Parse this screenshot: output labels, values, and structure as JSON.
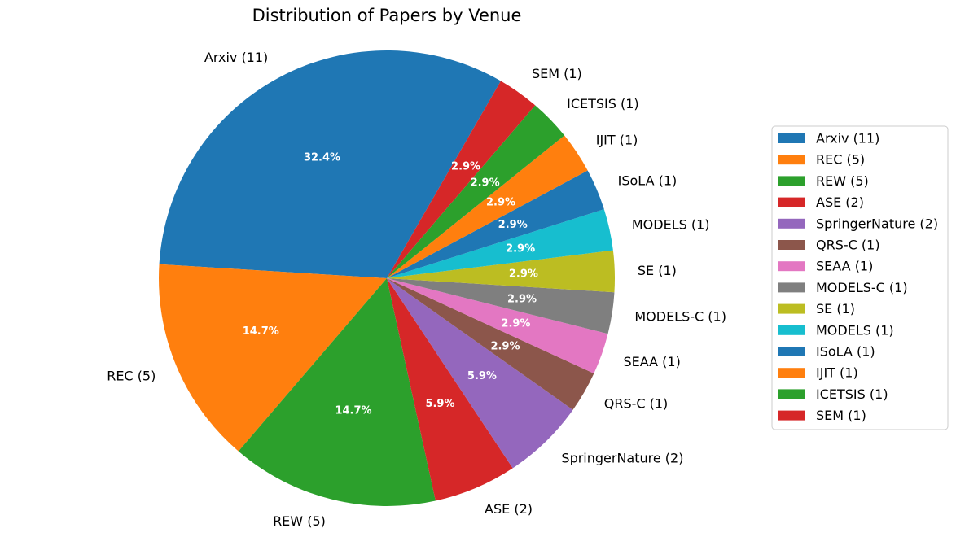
{
  "chart_data": {
    "type": "pie",
    "title": "Distribution of Papers by Venue",
    "start_angle_deg": 60,
    "direction": "counterclockwise",
    "legend_position": "right",
    "slices": [
      {
        "label": "Arxiv (11)",
        "value": 11,
        "pct": "32.4%",
        "color": "#1f77b4"
      },
      {
        "label": "REC (5)",
        "value": 5,
        "pct": "14.7%",
        "color": "#ff7f0e"
      },
      {
        "label": "REW (5)",
        "value": 5,
        "pct": "14.7%",
        "color": "#2ca02c"
      },
      {
        "label": "ASE (2)",
        "value": 2,
        "pct": "5.9%",
        "color": "#d62728"
      },
      {
        "label": "SpringerNature (2)",
        "value": 2,
        "pct": "5.9%",
        "color": "#9467bd"
      },
      {
        "label": "QRS-C (1)",
        "value": 1,
        "pct": "2.9%",
        "color": "#8c564b"
      },
      {
        "label": "SEAA (1)",
        "value": 1,
        "pct": "2.9%",
        "color": "#e377c2"
      },
      {
        "label": "MODELS-C (1)",
        "value": 1,
        "pct": "2.9%",
        "color": "#7f7f7f"
      },
      {
        "label": "SE (1)",
        "value": 1,
        "pct": "2.9%",
        "color": "#bcbd22"
      },
      {
        "label": "MODELS (1)",
        "value": 1,
        "pct": "2.9%",
        "color": "#17becf"
      },
      {
        "label": "ISoLA (1)",
        "value": 1,
        "pct": "2.9%",
        "color": "#1f77b4"
      },
      {
        "label": "IJIT (1)",
        "value": 1,
        "pct": "2.9%",
        "color": "#ff7f0e"
      },
      {
        "label": "ICETSIS (1)",
        "value": 1,
        "pct": "2.9%",
        "color": "#2ca02c"
      },
      {
        "label": "SEM (1)",
        "value": 1,
        "pct": "2.9%",
        "color": "#d62728"
      }
    ]
  }
}
